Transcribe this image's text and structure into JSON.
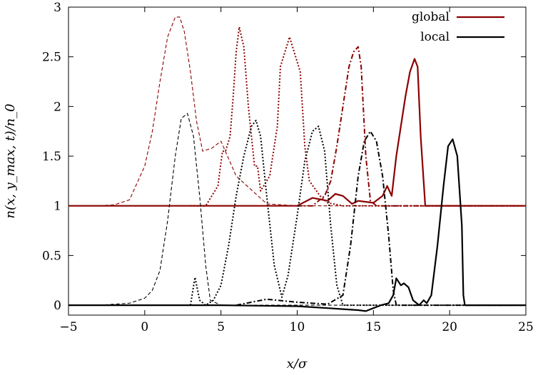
{
  "chart_data": {
    "type": "line",
    "xlabel": "x/σ",
    "ylabel": "n(x, y_max, t)/n_0",
    "xlim": [
      -5,
      25
    ],
    "ylim": [
      -0.1,
      3
    ],
    "xticks": [
      -5,
      0,
      5,
      10,
      15,
      20,
      25
    ],
    "yticks": [
      0,
      0.5,
      1,
      1.5,
      2,
      2.5,
      3
    ],
    "xtick_labels": [
      "−5",
      "0",
      "5",
      "10",
      "15",
      "20",
      "25"
    ],
    "ytick_labels": [
      "0",
      "0.5",
      "1",
      "1.5",
      "2",
      "2.5",
      "3"
    ],
    "grid": false,
    "legend": {
      "position": "top-right",
      "entries": [
        "global",
        "local"
      ]
    },
    "colors": {
      "global": "#8b0000",
      "local": "#000000"
    },
    "series": [
      {
        "name": "global",
        "dash": "thin-dashed",
        "x": [
          -3,
          -2,
          -1,
          0,
          0.5,
          1,
          1.5,
          2,
          2.3,
          2.6,
          3,
          3.4,
          3.8,
          4.4,
          5,
          6,
          8,
          10,
          12,
          14,
          16,
          18,
          20,
          22,
          24.8
        ],
        "y": [
          1,
          1.01,
          1.06,
          1.4,
          1.75,
          2.25,
          2.7,
          2.9,
          2.9,
          2.75,
          2.35,
          1.85,
          1.55,
          1.58,
          1.65,
          1.3,
          1.02,
          1,
          1,
          1,
          1,
          1,
          1,
          1,
          1
        ]
      },
      {
        "name": "global",
        "dash": "dotted",
        "x": [
          3,
          4,
          4.8,
          5.1,
          5.3,
          5.6,
          5.8,
          6,
          6.2,
          6.5,
          6.8,
          7.2,
          7.4,
          7.6,
          8.2,
          8.7,
          8.9,
          9.5,
          10.2,
          10.5,
          10.8,
          11.5,
          12,
          13,
          14,
          16,
          18,
          20,
          22,
          24.8
        ],
        "y": [
          1,
          1,
          1.2,
          1.55,
          1.55,
          1.7,
          2.1,
          2.55,
          2.8,
          2.6,
          2.0,
          1.4,
          1.4,
          1.15,
          1.3,
          1.8,
          2.4,
          2.7,
          2.35,
          1.6,
          1.25,
          1.1,
          1.03,
          1,
          1,
          1,
          1,
          1,
          1,
          1
        ]
      },
      {
        "name": "global",
        "dash": "dash-dot",
        "x": [
          10,
          11,
          11.8,
          12.2,
          12.6,
          13,
          13.4,
          13.7,
          14,
          14.2,
          14.5,
          14.8,
          15.2,
          16,
          18,
          20,
          22,
          24.8
        ],
        "y": [
          1,
          1,
          1.1,
          1.25,
          1.6,
          2.0,
          2.4,
          2.55,
          2.6,
          2.4,
          1.5,
          1.05,
          1,
          1,
          1,
          1,
          1,
          1
        ]
      },
      {
        "name": "global",
        "dash": "solid",
        "x": [
          -5,
          0,
          5,
          10,
          11,
          12,
          12.5,
          13,
          13.6,
          14,
          15,
          15.6,
          15.9,
          16.2,
          16.5,
          16.8,
          17.1,
          17.4,
          17.7,
          17.9,
          18.1,
          18.4,
          19,
          20,
          25
        ],
        "y": [
          1,
          1,
          1,
          1,
          1.08,
          1.05,
          1.12,
          1.1,
          1.02,
          1.05,
          1.03,
          1.1,
          1.2,
          1.1,
          1.5,
          1.8,
          2.1,
          2.35,
          2.48,
          2.4,
          1.7,
          1.0,
          1,
          1,
          1
        ]
      },
      {
        "name": "local",
        "dash": "thin-dashed",
        "x": [
          -3,
          -1,
          0,
          0.5,
          1,
          1.5,
          2,
          2.4,
          2.8,
          3.2,
          3.6,
          4.0,
          4.3,
          5,
          8,
          10,
          24.8
        ],
        "y": [
          0,
          0.02,
          0.07,
          0.15,
          0.35,
          0.85,
          1.5,
          1.88,
          1.93,
          1.7,
          1.1,
          0.4,
          0.05,
          0,
          0,
          0,
          0
        ]
      },
      {
        "name": "local",
        "dash": "dotted",
        "x": [
          3,
          3.3,
          3.6,
          4,
          4.5,
          5,
          5.5,
          6,
          6.5,
          7,
          7.3,
          7.6,
          8,
          8.5,
          9,
          9.4,
          10,
          10.5,
          11,
          11.4,
          11.8,
          12.2,
          12.6,
          13,
          16,
          24.8
        ],
        "y": [
          0,
          0.28,
          0.05,
          0,
          0.05,
          0.2,
          0.6,
          1.1,
          1.5,
          1.8,
          1.86,
          1.7,
          1.1,
          0.4,
          0.08,
          0.3,
          0.9,
          1.45,
          1.75,
          1.8,
          1.55,
          0.8,
          0.2,
          0,
          0,
          0
        ]
      },
      {
        "name": "local",
        "dash": "dash-dot",
        "x": [
          6,
          8,
          10,
          12,
          13,
          13.5,
          14,
          14.4,
          14.8,
          15.2,
          15.6,
          16,
          16.3,
          16.5,
          17,
          20,
          24.8
        ],
        "y": [
          0,
          0.06,
          0.03,
          0.01,
          0.1,
          0.6,
          1.3,
          1.65,
          1.75,
          1.65,
          1.3,
          0.7,
          0.15,
          0,
          0,
          0,
          0
        ]
      },
      {
        "name": "local",
        "dash": "solid",
        "x": [
          -5,
          5,
          10,
          11,
          12,
          13,
          14,
          14.5,
          15,
          15.5,
          16,
          16.3,
          16.5,
          16.8,
          17,
          17.3,
          17.6,
          18,
          18.3,
          18.5,
          18.8,
          19.2,
          19.6,
          19.9,
          20.2,
          20.5,
          20.8,
          20.9,
          21,
          22,
          25
        ],
        "y": [
          0,
          0,
          -0.01,
          -0.02,
          -0.03,
          -0.04,
          -0.05,
          -0.06,
          -0.03,
          0,
          0.02,
          0.1,
          0.27,
          0.2,
          0.22,
          0.18,
          0.05,
          0,
          0.05,
          0.02,
          0.1,
          0.6,
          1.2,
          1.6,
          1.67,
          1.5,
          0.8,
          0.1,
          0,
          0,
          0
        ]
      }
    ]
  }
}
